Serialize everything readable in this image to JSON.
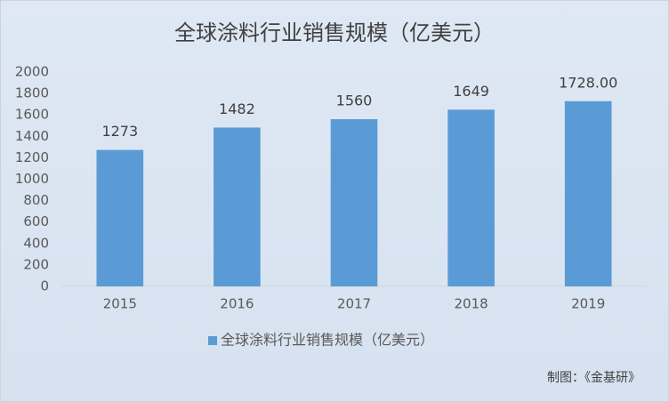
{
  "chart_data": {
    "type": "bar",
    "title": "全球涂料行业销售规模（亿美元）",
    "categories": [
      "2015",
      "2016",
      "2017",
      "2018",
      "2019"
    ],
    "series": [
      {
        "name": "全球涂料行业销售规模（亿美元）",
        "color": "#5b9bd5",
        "values": [
          1273,
          1482,
          1560,
          1649,
          1728
        ],
        "value_labels": [
          "1273",
          "1482",
          "1560",
          "1649",
          "1728.00"
        ]
      }
    ],
    "ylim": [
      0,
      2000
    ],
    "yticks": [
      0,
      200,
      400,
      600,
      800,
      1000,
      1200,
      1400,
      1600,
      1800,
      2000
    ],
    "grid": false,
    "legend": "bottom",
    "source": "制图：《金基研》"
  }
}
